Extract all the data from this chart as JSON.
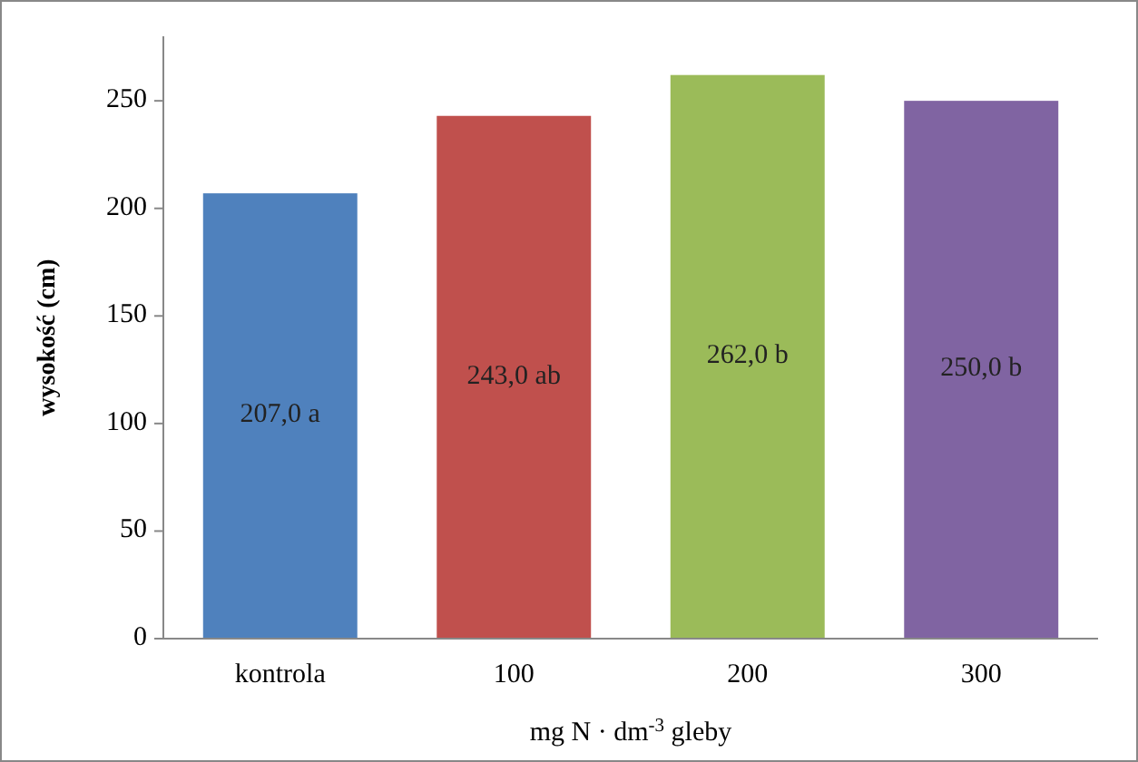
{
  "chart_data": {
    "type": "bar",
    "categories": [
      "kontrola",
      "100",
      "200",
      "300"
    ],
    "values": [
      207,
      243,
      262,
      250
    ],
    "colors": [
      "#4f81bd",
      "#c0504d",
      "#9bbb59",
      "#8064a2"
    ],
    "value_labels": [
      "207,0 a",
      "243,0 ab",
      "262,0 b",
      "250,0 b"
    ],
    "xlabel": "mg N · dm$^{-3}$ gleby",
    "ylabel": "wysokość (cm)",
    "ylim": [
      0,
      280
    ],
    "yticks": [
      0,
      50,
      100,
      150,
      200,
      250
    ],
    "grid": false
  }
}
